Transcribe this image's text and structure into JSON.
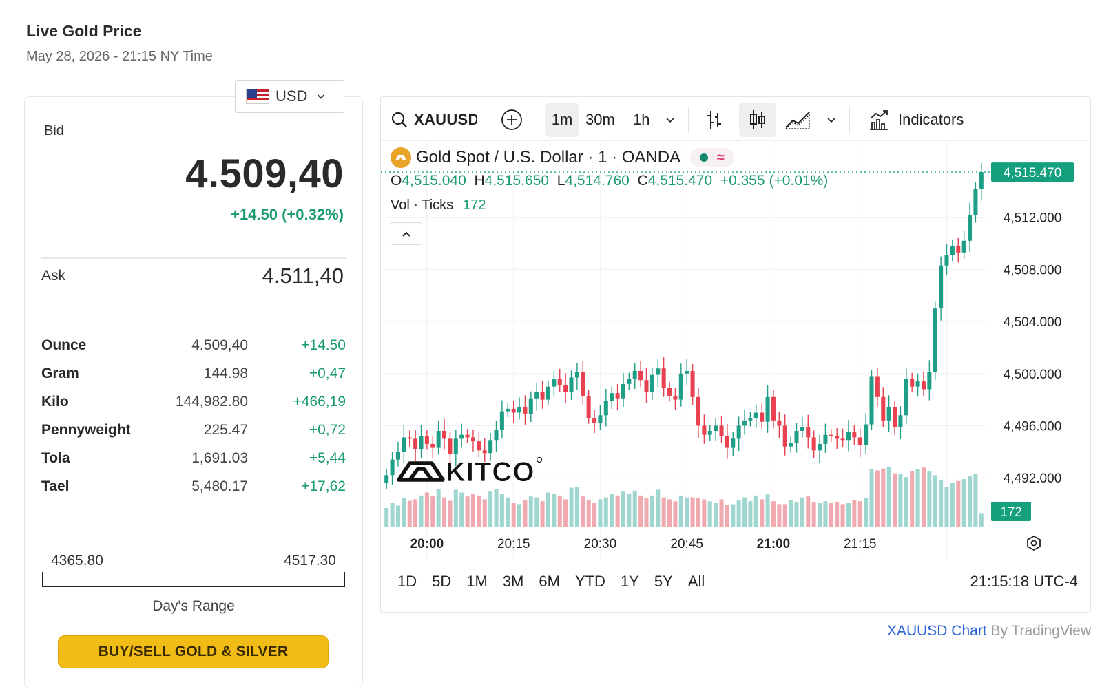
{
  "header": {
    "title": "Live Gold Price",
    "timestamp": "May 28, 2026 - 21:15 NY Time"
  },
  "currency": {
    "label": "USD",
    "flag": "us-flag-icon"
  },
  "quote": {
    "bid_label": "Bid",
    "bid": "4.509,40",
    "bid_change": "+14.50 (+0.32%)",
    "ask_label": "Ask",
    "ask": "4.511,40"
  },
  "units": [
    {
      "name": "Ounce",
      "price": "4.509,40",
      "change": "+14.50"
    },
    {
      "name": "Gram",
      "price": "144.98",
      "change": "+0,47"
    },
    {
      "name": "Kilo",
      "price": "144,982.80",
      "change": "+466,19"
    },
    {
      "name": "Pennyweight",
      "price": "225.47",
      "change": "+0,72"
    },
    {
      "name": "Tola",
      "price": "1,691.03",
      "change": "+5,44"
    },
    {
      "name": "Tael",
      "price": "5,480.17",
      "change": "+17,62"
    }
  ],
  "day_range": {
    "low": "4365.80",
    "high": "4517.30",
    "label": "Day's Range"
  },
  "buy_button": "BUY/SELL GOLD & SILVER",
  "toolbar": {
    "symbol": "XAUUSD",
    "intervals": [
      "1m",
      "30m",
      "1h"
    ],
    "active_interval": "1m",
    "indicators_label": "Indicators"
  },
  "legend": {
    "title": "Gold Spot / U.S. Dollar · 1 · OANDA",
    "ohlc": {
      "o_label": "O",
      "o": "4,515.040",
      "h_label": "H",
      "h": "4,515.650",
      "l_label": "L",
      "l": "4,514.760",
      "c_label": "C",
      "c": "4,515.470",
      "change": "+0.355 (+0.01%)"
    },
    "vol_label": "Vol · Ticks",
    "vol_value": "172"
  },
  "chart_data": {
    "type": "candlestick",
    "symbol": "XAUUSD",
    "interval": "1m",
    "y_ticks": [
      4492,
      4496,
      4500,
      4504,
      4508,
      4512
    ],
    "y_tick_labels": [
      "4,492.000",
      "4,496.000",
      "4,500.000",
      "4,504.000",
      "4,508.000",
      "4,512.000"
    ],
    "ylim": [
      4488.2,
      4517.8
    ],
    "x_tick_labels": [
      "20:00",
      "20:15",
      "20:30",
      "20:45",
      "21:00",
      "21:15"
    ],
    "x_tick_bold": [
      true,
      false,
      false,
      false,
      true,
      false
    ],
    "last_price_label": "4,515.470",
    "last_price": 4515.47,
    "last_volume_label": "172",
    "grid": true,
    "closes": [
      4492.2,
      4493.4,
      4494.0,
      4495.1,
      4495.0,
      4494.2,
      4495.2,
      4494.6,
      4494.3,
      4495.6,
      4495.0,
      4493.8,
      4495.0,
      4495.3,
      4495.1,
      4494.8,
      4494.1,
      4493.9,
      4494.9,
      4495.7,
      4497.1,
      4497.3,
      4497.0,
      4497.4,
      4496.9,
      4498.1,
      4498.6,
      4498.0,
      4499.0,
      4499.6,
      4499.1,
      4498.6,
      4499.7,
      4500.1,
      4498.3,
      4496.6,
      4496.2,
      4496.8,
      4497.9,
      4498.5,
      4498.1,
      4499.2,
      4499.6,
      4500.2,
      4499.5,
      4498.6,
      4499.9,
      4500.4,
      4498.9,
      4498.3,
      4498.0,
      4500.0,
      4500.2,
      4498.2,
      4496.0,
      4495.3,
      4495.6,
      4496.0,
      4495.2,
      4494.3,
      4495.0,
      4496.0,
      4496.4,
      4496.6,
      4497.0,
      4496.3,
      4498.2,
      4496.4,
      4496.0,
      4494.4,
      4494.7,
      4495.6,
      4495.9,
      4495.1,
      4494.1,
      4494.6,
      4495.3,
      4495.2,
      4495.0,
      4494.9,
      4495.5,
      4495.1,
      4494.5,
      4496.1,
      4499.8,
      4498.2,
      4496.4,
      4497.4,
      4495.9,
      4496.8,
      4499.6,
      4499.0,
      4499.4,
      4498.8,
      4500.1,
      4505.0,
      4508.3,
      4509.1,
      4509.8,
      4509.3,
      4510.2,
      4512.2,
      4514.2,
      4515.47
    ],
    "volumes": [
      40,
      50,
      45,
      60,
      55,
      58,
      66,
      72,
      64,
      80,
      62,
      55,
      78,
      72,
      64,
      70,
      66,
      58,
      74,
      80,
      70,
      62,
      50,
      48,
      56,
      64,
      62,
      54,
      72,
      70,
      66,
      58,
      82,
      84,
      64,
      56,
      50,
      58,
      62,
      70,
      66,
      74,
      70,
      76,
      66,
      60,
      66,
      78,
      62,
      58,
      54,
      66,
      62,
      62,
      60,
      58,
      54,
      50,
      58,
      46,
      48,
      56,
      62,
      54,
      66,
      58,
      68,
      54,
      48,
      48,
      56,
      52,
      62,
      64,
      52,
      50,
      54,
      50,
      52,
      48,
      50,
      56,
      54,
      60,
      120,
      118,
      122,
      126,
      112,
      110,
      104,
      116,
      120,
      124,
      116,
      108,
      98,
      84,
      92,
      96,
      100,
      106,
      110,
      28
    ]
  },
  "range_buttons": [
    "1D",
    "5D",
    "1M",
    "3M",
    "6M",
    "YTD",
    "1Y",
    "5Y",
    "All"
  ],
  "clock": "21:15:18 UTC-4",
  "logo_text": "KITCO",
  "attribution": {
    "link": "XAUUSD Chart",
    "suffix": " By TradingView"
  },
  "colors": {
    "up": "#1e9e86",
    "down": "#e8414f",
    "accent": "#1a9a70",
    "button": "#f2bc17"
  }
}
